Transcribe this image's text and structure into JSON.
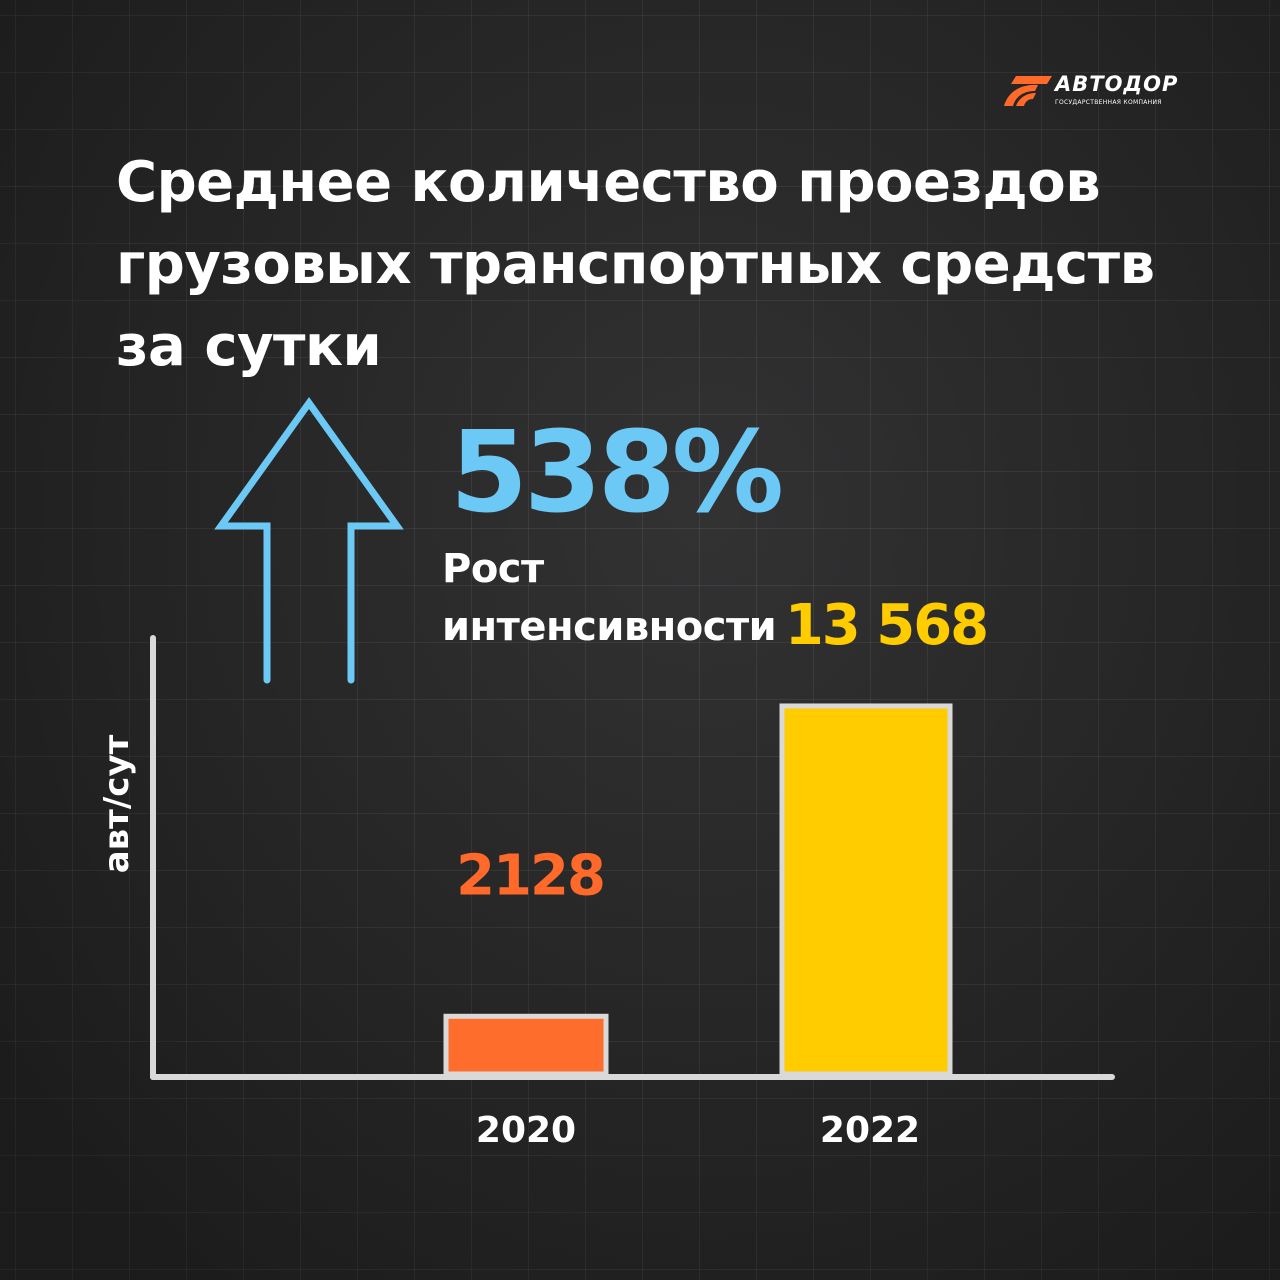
{
  "brand": {
    "name": "АВТОДОР",
    "subtitle": "ГОСУДАРСТВЕННАЯ КОМПАНИЯ",
    "accent_color": "#ff6a2a"
  },
  "title_lines": [
    "Среднее количество проездов",
    "грузовых транспортных средств",
    "за сутки"
  ],
  "growth": {
    "percent": "538%",
    "label_lines": [
      "Рост",
      "интенсивности"
    ],
    "icon": "arrow-up-icon",
    "color": "#6cc8f4"
  },
  "chart_data": {
    "type": "bar",
    "categories": [
      "2020",
      "2022"
    ],
    "values": [
      2128,
      13568
    ],
    "value_labels": [
      "2128",
      "13 568"
    ],
    "colors": [
      "#ff6d2c",
      "#ffcc00"
    ],
    "ylabel": "авт/сут",
    "xlabel": "",
    "title": "Среднее количество проездов грузовых транспортных средств за сутки",
    "ylim": [
      0,
      16000
    ],
    "grid": false,
    "legend": "none"
  }
}
